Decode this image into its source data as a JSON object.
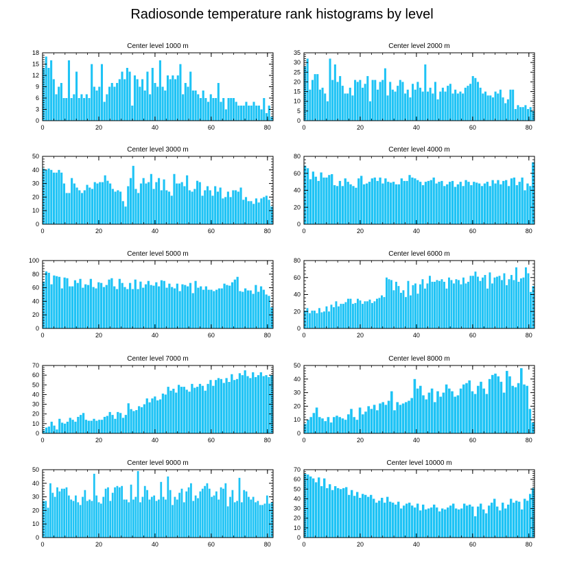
{
  "title": "Radiosonde temperature rank histograms by level",
  "bar_color": "#1ec3f5",
  "chart_data": [
    {
      "type": "bar",
      "title": "Center level 1000 m",
      "xlim": [
        0,
        82
      ],
      "xticks": [
        0,
        20,
        40,
        60,
        80
      ],
      "ylim": [
        0,
        18
      ],
      "yticks": [
        0,
        3,
        6,
        9,
        12,
        15,
        18
      ],
      "values": [
        14,
        17,
        14,
        16,
        11,
        7,
        9,
        10,
        6,
        6,
        16,
        6,
        7,
        13,
        6,
        7,
        6,
        7,
        6,
        15,
        9,
        8,
        9,
        15,
        5,
        7,
        9,
        10,
        9,
        10,
        11,
        13,
        11,
        14,
        13,
        4,
        12,
        11,
        9,
        11,
        8,
        13,
        7,
        14,
        10,
        9,
        16,
        9,
        8,
        12,
        11,
        12,
        11,
        12,
        15,
        7,
        10,
        9,
        13,
        8,
        8,
        7,
        6,
        8,
        6,
        5,
        7,
        6,
        6,
        10,
        5,
        6,
        3,
        6,
        6,
        6,
        5,
        4,
        4,
        4,
        5,
        4,
        4,
        5,
        4,
        4,
        3,
        6,
        2,
        4,
        1
      ]
    },
    {
      "type": "bar",
      "title": "Center level 2000 m",
      "xlim": [
        0,
        82
      ],
      "xticks": [
        0,
        20,
        40,
        60,
        80
      ],
      "ylim": [
        0,
        35
      ],
      "yticks": [
        0,
        5,
        10,
        15,
        20,
        25,
        30,
        35
      ],
      "values": [
        28,
        32,
        16,
        21,
        24,
        24,
        16,
        17,
        14,
        10,
        32,
        21,
        29,
        20,
        23,
        18,
        14,
        14,
        17,
        13,
        21,
        20,
        21,
        17,
        19,
        23,
        10,
        21,
        21,
        16,
        20,
        21,
        27,
        13,
        20,
        16,
        15,
        18,
        21,
        20,
        14,
        16,
        12,
        19,
        16,
        20,
        17,
        15,
        29,
        15,
        17,
        14,
        20,
        11,
        15,
        17,
        15,
        18,
        19,
        14,
        16,
        14,
        15,
        14,
        17,
        18,
        19,
        23,
        22,
        20,
        17,
        14,
        15,
        13,
        13,
        12,
        15,
        14,
        16,
        12,
        9,
        11,
        16,
        16,
        6,
        8,
        7,
        7,
        8,
        6,
        7,
        5
      ]
    },
    {
      "type": "bar",
      "title": "Center level 3000 m",
      "xlim": [
        0,
        82
      ],
      "xticks": [
        0,
        20,
        40,
        60,
        80
      ],
      "ylim": [
        0,
        50
      ],
      "yticks": [
        0,
        10,
        20,
        30,
        40,
        50
      ],
      "values": [
        41,
        40,
        41,
        40,
        38,
        38,
        40,
        38,
        30,
        23,
        23,
        34,
        30,
        27,
        25,
        23,
        25,
        29,
        27,
        26,
        31,
        30,
        31,
        31,
        36,
        32,
        30,
        26,
        24,
        25,
        24,
        17,
        13,
        28,
        34,
        43,
        26,
        23,
        30,
        34,
        30,
        31,
        37,
        26,
        31,
        34,
        25,
        33,
        25,
        24,
        21,
        37,
        30,
        30,
        31,
        28,
        36,
        25,
        24,
        26,
        32,
        31,
        21,
        25,
        28,
        25,
        21,
        28,
        24,
        27,
        19,
        20,
        24,
        20,
        25,
        25,
        24,
        27,
        18,
        20,
        17,
        17,
        15,
        19,
        16,
        19,
        20,
        21,
        18,
        13
      ]
    },
    {
      "type": "bar",
      "title": "Center level 4000 m",
      "xlim": [
        0,
        82
      ],
      "xticks": [
        0,
        20,
        40,
        60,
        80
      ],
      "ylim": [
        0,
        80
      ],
      "yticks": [
        0,
        20,
        40,
        60,
        80
      ],
      "values": [
        69,
        66,
        53,
        62,
        56,
        51,
        61,
        55,
        55,
        58,
        59,
        46,
        45,
        51,
        45,
        54,
        50,
        47,
        45,
        43,
        54,
        57,
        47,
        48,
        50,
        54,
        55,
        51,
        55,
        48,
        54,
        50,
        49,
        50,
        47,
        47,
        54,
        51,
        51,
        58,
        55,
        54,
        52,
        50,
        46,
        50,
        51,
        52,
        55,
        48,
        50,
        51,
        45,
        47,
        50,
        51,
        44,
        47,
        50,
        45,
        52,
        50,
        46,
        50,
        49,
        48,
        45,
        48,
        50,
        45,
        52,
        48,
        52,
        47,
        51,
        52,
        45,
        54,
        55,
        46,
        50,
        55,
        40,
        48,
        45,
        73
      ]
    },
    {
      "type": "bar",
      "title": "Center level 5000 m",
      "xlim": [
        0,
        82
      ],
      "xticks": [
        0,
        20,
        40,
        60,
        80
      ],
      "ylim": [
        0,
        100
      ],
      "yticks": [
        0,
        20,
        40,
        60,
        80,
        100
      ],
      "values": [
        69,
        84,
        82,
        65,
        78,
        77,
        76,
        59,
        75,
        74,
        62,
        62,
        71,
        67,
        73,
        60,
        65,
        64,
        73,
        61,
        59,
        68,
        67,
        61,
        64,
        72,
        74,
        62,
        58,
        73,
        67,
        61,
        58,
        67,
        58,
        72,
        58,
        69,
        60,
        65,
        70,
        64,
        63,
        68,
        62,
        71,
        70,
        60,
        66,
        61,
        59,
        66,
        55,
        65,
        64,
        62,
        67,
        52,
        70,
        60,
        62,
        57,
        62,
        57,
        57,
        55,
        57,
        59,
        59,
        66,
        64,
        63,
        68,
        72,
        76,
        55,
        54,
        59,
        56,
        56,
        51,
        64,
        54,
        62,
        57,
        50,
        48,
        31
      ]
    },
    {
      "type": "bar",
      "title": "Center level 6000 m",
      "xlim": [
        0,
        82
      ],
      "xticks": [
        0,
        20,
        40,
        60,
        80
      ],
      "ylim": [
        0,
        80
      ],
      "yticks": [
        0,
        20,
        40,
        60,
        80
      ],
      "values": [
        21,
        24,
        18,
        21,
        21,
        18,
        24,
        19,
        20,
        26,
        20,
        28,
        25,
        32,
        26,
        29,
        29,
        31,
        35,
        35,
        29,
        30,
        35,
        33,
        29,
        32,
        32,
        34,
        30,
        32,
        35,
        36,
        39,
        37,
        60,
        58,
        57,
        45,
        55,
        50,
        42,
        45,
        37,
        56,
        39,
        51,
        53,
        41,
        52,
        58,
        47,
        53,
        62,
        55,
        55,
        57,
        56,
        58,
        55,
        47,
        60,
        57,
        53,
        58,
        57,
        52,
        60,
        53,
        55,
        62,
        62,
        67,
        61,
        56,
        60,
        63,
        47,
        66,
        53,
        60,
        61,
        62,
        57,
        65,
        51,
        58,
        63,
        57,
        72,
        55,
        59,
        60,
        72,
        65,
        43,
        50
      ]
    },
    {
      "type": "bar",
      "title": "Center level 7000 m",
      "xlim": [
        0,
        82
      ],
      "xticks": [
        0,
        20,
        40,
        60,
        80
      ],
      "ylim": [
        0,
        70
      ],
      "yticks": [
        0,
        10,
        20,
        30,
        40,
        50,
        60,
        70
      ],
      "values": [
        3,
        6,
        7,
        12,
        8,
        4,
        15,
        11,
        10,
        12,
        16,
        14,
        12,
        17,
        19,
        21,
        14,
        13,
        13,
        15,
        13,
        14,
        14,
        17,
        18,
        22,
        19,
        15,
        22,
        21,
        16,
        19,
        31,
        25,
        23,
        24,
        28,
        27,
        30,
        36,
        32,
        36,
        38,
        34,
        35,
        41,
        40,
        48,
        44,
        46,
        42,
        50,
        48,
        48,
        45,
        43,
        51,
        47,
        48,
        51,
        49,
        44,
        51,
        55,
        49,
        55,
        57,
        56,
        52,
        57,
        53,
        61,
        55,
        56,
        62,
        60,
        65,
        59,
        57,
        63,
        58,
        60,
        63,
        59,
        60,
        58,
        60
      ]
    },
    {
      "type": "bar",
      "title": "Center level 8000 m",
      "xlim": [
        0,
        82
      ],
      "xticks": [
        0,
        20,
        40,
        60,
        80
      ],
      "ylim": [
        0,
        50
      ],
      "yticks": [
        0,
        10,
        20,
        30,
        40,
        50
      ],
      "values": [
        7,
        10,
        12,
        15,
        19,
        12,
        11,
        9,
        12,
        8,
        12,
        13,
        12,
        11,
        10,
        14,
        18,
        12,
        10,
        19,
        14,
        16,
        20,
        18,
        21,
        17,
        22,
        23,
        21,
        24,
        31,
        17,
        23,
        21,
        22,
        23,
        24,
        26,
        40,
        33,
        35,
        28,
        25,
        30,
        33,
        23,
        31,
        27,
        30,
        36,
        33,
        31,
        27,
        28,
        33,
        36,
        37,
        39,
        31,
        29,
        35,
        38,
        33,
        29,
        40,
        43,
        44,
        42,
        38,
        30,
        46,
        42,
        35,
        34,
        37,
        48,
        36,
        35,
        18,
        8
      ]
    },
    {
      "type": "bar",
      "title": "Center level 9000 m",
      "xlim": [
        0,
        82
      ],
      "xticks": [
        0,
        20,
        40,
        60,
        80
      ],
      "ylim": [
        0,
        50
      ],
      "yticks": [
        0,
        10,
        20,
        30,
        40,
        50
      ],
      "values": [
        27,
        27,
        22,
        40,
        33,
        30,
        37,
        34,
        36,
        36,
        37,
        31,
        28,
        27,
        31,
        26,
        24,
        30,
        35,
        27,
        28,
        27,
        47,
        31,
        26,
        25,
        30,
        36,
        37,
        27,
        33,
        37,
        38,
        37,
        38,
        28,
        28,
        26,
        39,
        28,
        30,
        49,
        26,
        30,
        38,
        35,
        28,
        30,
        31,
        27,
        28,
        41,
        30,
        28,
        45,
        35,
        24,
        30,
        28,
        33,
        36,
        26,
        34,
        37,
        40,
        27,
        31,
        29,
        34,
        36,
        38,
        40,
        36,
        30,
        31,
        34,
        28,
        37,
        36,
        40,
        23,
        30,
        35,
        26,
        27,
        44,
        26,
        35,
        34,
        30,
        28,
        30,
        26,
        27,
        24,
        24,
        25,
        31,
        25,
        26
      ]
    },
    {
      "type": "bar",
      "title": "Center level 10000 m",
      "xlim": [
        0,
        82
      ],
      "xticks": [
        0,
        20,
        40,
        60,
        80
      ],
      "ylim": [
        0,
        70
      ],
      "yticks": [
        0,
        10,
        20,
        30,
        40,
        50,
        60,
        70
      ],
      "values": [
        66,
        65,
        63,
        61,
        57,
        62,
        53,
        61,
        51,
        55,
        49,
        53,
        51,
        50,
        51,
        52,
        44,
        49,
        43,
        47,
        41,
        45,
        44,
        42,
        44,
        40,
        36,
        38,
        41,
        36,
        42,
        37,
        36,
        34,
        37,
        30,
        33,
        35,
        36,
        33,
        31,
        35,
        28,
        34,
        29,
        30,
        31,
        34,
        31,
        27,
        30,
        29,
        31,
        33,
        35,
        30,
        29,
        30,
        35,
        33,
        34,
        32,
        22,
        32,
        35,
        29,
        25,
        33,
        36,
        40,
        32,
        28,
        36,
        30,
        34,
        40,
        36,
        38,
        37,
        29,
        40,
        38,
        45,
        51
      ]
    }
  ]
}
